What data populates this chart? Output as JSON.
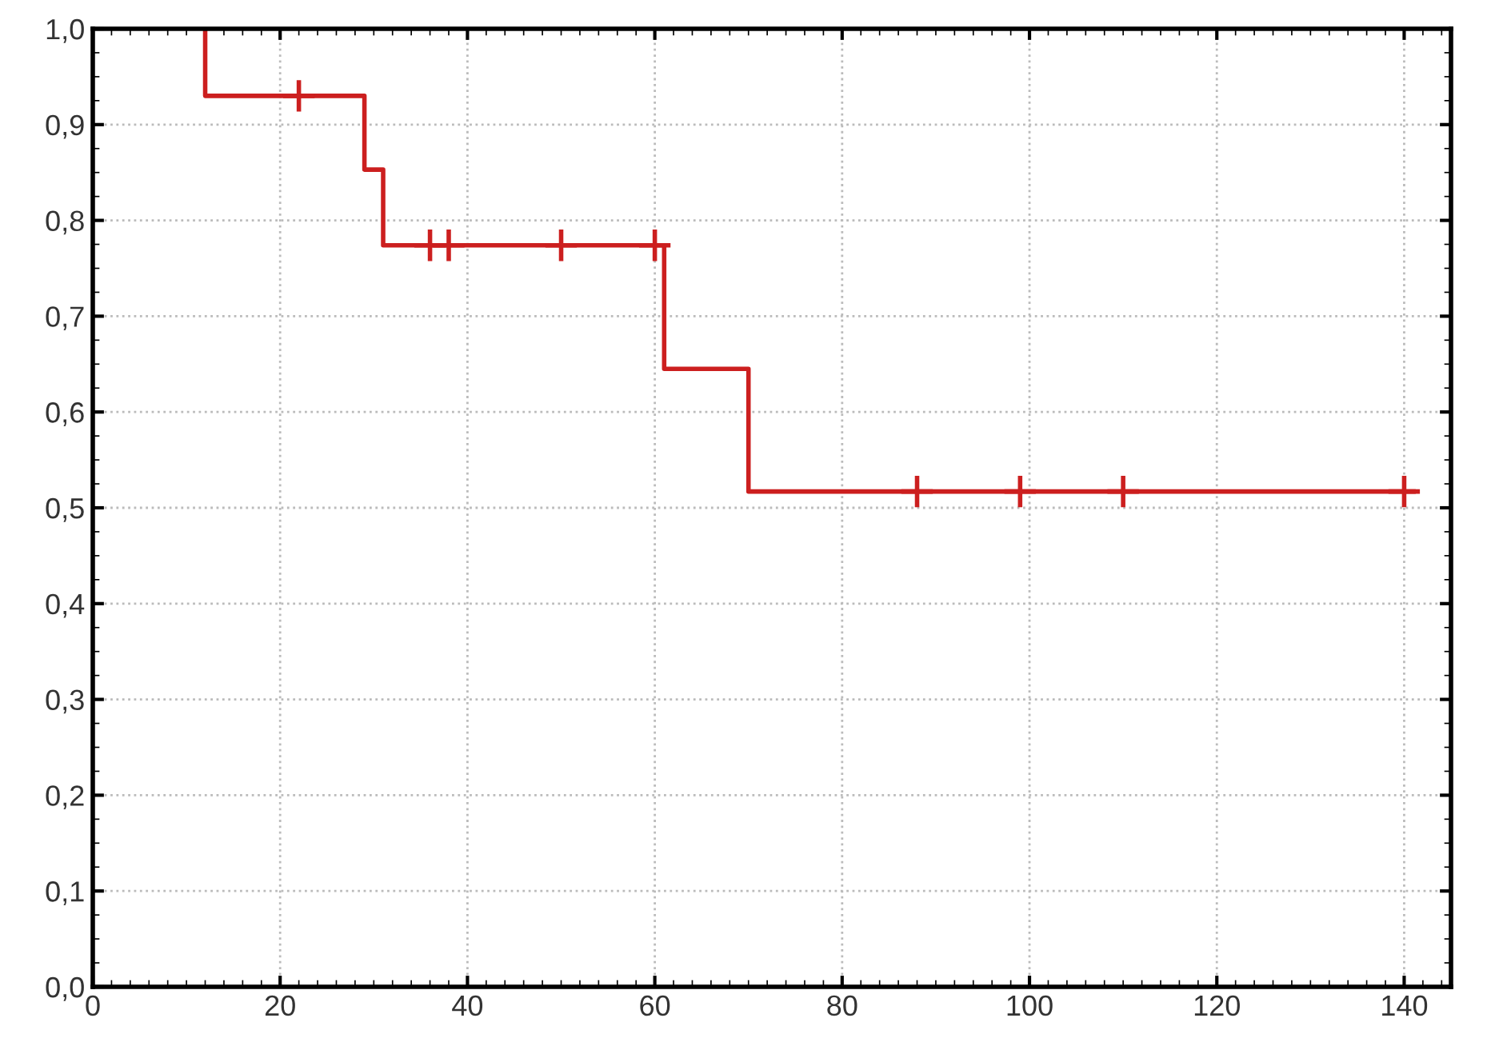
{
  "chart_data": {
    "type": "step",
    "series": [
      {
        "type": "step",
        "color": "#cc1f1f",
        "x": [
          12,
          12,
          29,
          31,
          61,
          70,
          141
        ],
        "values": [
          1.0,
          0.93,
          0.853,
          0.774,
          0.645,
          0.517,
          0.517
        ]
      },
      {
        "type": "scatter",
        "marker": "cross",
        "color": "#cc1f1f",
        "x": [
          22,
          36,
          38,
          50,
          60,
          88,
          99,
          110,
          140
        ],
        "values": [
          0.93,
          0.774,
          0.774,
          0.774,
          0.774,
          0.517,
          0.517,
          0.517,
          0.517
        ]
      }
    ],
    "xlim": [
      0,
      145
    ],
    "ylim": [
      0,
      1.0
    ],
    "xticks": [
      0,
      20,
      40,
      60,
      80,
      100,
      120,
      140
    ],
    "yticks": [
      {
        "value": 0,
        "label": "0,0"
      },
      {
        "value": 0.1,
        "label": "0,1"
      },
      {
        "value": 0.2,
        "label": "0,2"
      },
      {
        "value": 0.3,
        "label": "0,3"
      },
      {
        "value": 0.4,
        "label": "0,4"
      },
      {
        "value": 0.5,
        "label": "0,5"
      },
      {
        "value": 0.6,
        "label": "0,6"
      },
      {
        "value": 0.7,
        "label": "0,7"
      },
      {
        "value": 0.8,
        "label": "0,8"
      },
      {
        "value": 0.9,
        "label": "0,9"
      },
      {
        "value": 1.0,
        "label": "1,0"
      }
    ],
    "grid": true
  }
}
